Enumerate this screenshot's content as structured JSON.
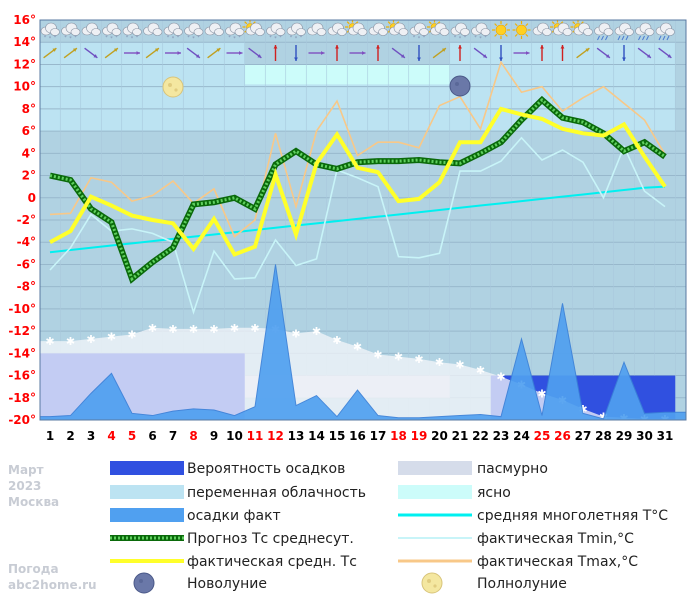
{
  "chart_data": {
    "type": "line",
    "title": "",
    "xlabel": "",
    "ylabel": "",
    "x": [
      1,
      2,
      3,
      4,
      5,
      6,
      7,
      8,
      9,
      10,
      11,
      12,
      13,
      14,
      15,
      16,
      17,
      18,
      19,
      20,
      21,
      22,
      23,
      24,
      25,
      26,
      27,
      28,
      29,
      30,
      31
    ],
    "weekend_days": [
      4,
      5,
      8,
      11,
      12,
      18,
      19,
      25,
      26
    ],
    "ylim": [
      -20,
      16
    ],
    "yticks": [
      "16°",
      "14°",
      "12°",
      "10°",
      "8°",
      "6°",
      "4°",
      "2°",
      "0",
      "-2°",
      "-4°",
      "-6°",
      "-8°",
      "-10°",
      "-12°",
      "-14°",
      "-16°",
      "-18°",
      "-20°"
    ],
    "series": [
      {
        "name": "средняя многолетняя T°C",
        "color": "#00f0f0",
        "values": [
          -4.9,
          -4.7,
          -4.5,
          -4.3,
          -4.1,
          -3.9,
          -3.7,
          -3.5,
          -3.3,
          -3.1,
          -2.9,
          -2.7,
          -2.5,
          -2.3,
          -2.1,
          -1.9,
          -1.7,
          -1.5,
          -1.3,
          -1.1,
          -0.9,
          -0.7,
          -0.5,
          -0.3,
          -0.1,
          0.1,
          0.3,
          0.5,
          0.7,
          0.9,
          1.0
        ]
      },
      {
        "name": "фактическая Tmin,°C",
        "color": "#c8f4f8",
        "values": [
          -6.5,
          -4.5,
          -1.5,
          -3.0,
          -2.8,
          -3.2,
          -4.0,
          -10.3,
          -4.8,
          -7.3,
          -7.2,
          -3.8,
          -6.1,
          -5.5,
          2.5,
          1.8,
          1.0,
          -5.3,
          -5.4,
          -5.0,
          2.4,
          2.4,
          3.3,
          5.4,
          3.4,
          4.3,
          3.2,
          0.0,
          4.6,
          0.6,
          -0.8
        ]
      },
      {
        "name": "фактическая Tmax,°C",
        "color": "#f8c888",
        "values": [
          -1.5,
          -1.4,
          1.8,
          1.4,
          -0.3,
          0.2,
          1.5,
          -0.5,
          0.8,
          -3.5,
          -2.0,
          5.8,
          -0.8,
          6.0,
          8.7,
          3.8,
          5.0,
          5.0,
          4.5,
          8.3,
          9.1,
          6.2,
          12.2,
          9.5,
          10.0,
          7.8,
          9.0,
          10.0,
          8.5,
          7.0,
          3.9
        ]
      },
      {
        "name": "Прогноз Тс среднесут.",
        "color": "#108810",
        "values": [
          2.0,
          1.6,
          -1.0,
          -2.2,
          -7.3,
          -5.8,
          -4.5,
          -0.6,
          -0.4,
          0.0,
          -1.0,
          3.0,
          4.2,
          3.0,
          2.6,
          3.2,
          3.3,
          3.3,
          3.4,
          3.2,
          3.1,
          4.0,
          5.0,
          7.0,
          8.8,
          7.2,
          6.8,
          5.8,
          4.2,
          5.0,
          3.7
        ]
      },
      {
        "name": "фактическая средн. Тс",
        "color": "#ffff2a",
        "values": [
          -4.0,
          -3.0,
          0.1,
          -0.7,
          -1.6,
          -2.0,
          -2.3,
          -4.6,
          -1.9,
          -5.1,
          -4.4,
          2.1,
          -3.3,
          3.1,
          5.7,
          2.7,
          2.3,
          -0.3,
          -0.1,
          1.4,
          5.0,
          5.0,
          8.0,
          7.5,
          7.1,
          6.2,
          5.8,
          5.6,
          6.6,
          3.7,
          1.0
        ]
      }
    ],
    "precip_fact": [
      -19.7,
      -19.6,
      -17.6,
      -15.8,
      -19.4,
      -19.6,
      -19.2,
      -19.0,
      -19.1,
      -19.6,
      -18.8,
      -6.0,
      -18.7,
      -17.8,
      -19.7,
      -17.3,
      -19.6,
      -19.8,
      -19.8,
      -19.7,
      -19.6,
      -19.5,
      -19.7,
      -12.7,
      -19.6,
      -9.5,
      -19.4,
      -19.9,
      -14.8,
      -19.4,
      -19.3
    ],
    "snow_line": [
      -12.9,
      -12.9,
      -12.7,
      -12.5,
      -12.3,
      -11.7,
      -11.8,
      -11.8,
      -11.8,
      -11.7,
      -11.7,
      -11.8,
      -12.2,
      -12.0,
      -12.8,
      -13.4,
      -14.1,
      -14.3,
      -14.5,
      -14.8,
      -15.0,
      -15.5,
      -16.1,
      -16.8,
      -17.6,
      -18.2,
      -19.0,
      -19.7,
      -19.8,
      -19.9,
      -19.9
    ],
    "precip_prob_bands": [
      {
        "from": 0.5,
        "to": 10.5,
        "top": -14
      },
      {
        "from": 22.5,
        "to": 31.5,
        "top": -16
      }
    ],
    "overcast_bands": [
      {
        "from": 0.5,
        "to": 10.5,
        "top": -14,
        "bottom": -19
      },
      {
        "from": 10.5,
        "to": 20.5,
        "top": -16,
        "bottom": -18
      }
    ],
    "sky_bands": [
      {
        "kind": "partly",
        "from": 0.5,
        "to": 10.5,
        "top": 14,
        "bottom": 6
      },
      {
        "kind": "clear",
        "from": 10.5,
        "to": 20.5,
        "top": 12,
        "bottom": 10.2
      },
      {
        "kind": "partly",
        "from": 10.5,
        "to": 20.5,
        "top": 10.2,
        "bottom": 6
      },
      {
        "kind": "partly",
        "from": 20.5,
        "to": 31.5,
        "top": 14,
        "bottom": 6
      }
    ],
    "full_moon_day": 7,
    "new_moon_day": 21,
    "weather_icons": [
      "snow-cloud",
      "snow-cloud",
      "cloud",
      "snow-cloud",
      "snow-cloud",
      "cloud",
      "snow-cloud",
      "snow-cloud",
      "cloud",
      "snow-cloud",
      "sun-cloud",
      "snow-cloud",
      "snow-cloud",
      "cloud",
      "cloud",
      "sun-cloud",
      "cloud",
      "sun-cloud",
      "snow-cloud",
      "sun-cloud",
      "snow-cloud",
      "snow-cloud",
      "sun",
      "sun",
      "cloud",
      "sun-cloud",
      "sun-cloud",
      "rain-cloud",
      "rain-cloud",
      "rain-cloud",
      "rain-cloud"
    ],
    "wind_arrows": [
      "ne",
      "ne",
      "se",
      "ne",
      "e",
      "ne",
      "e",
      "se",
      "ne",
      "e",
      "se",
      "n",
      "s",
      "e",
      "n",
      "e",
      "n",
      "se",
      "s",
      "ne",
      "n",
      "se",
      "s",
      "e",
      "n",
      "n",
      "ne",
      "se",
      "s",
      "se",
      "se"
    ]
  },
  "legend": {
    "col1": [
      {
        "label": "Вероятность осадков",
        "swatch": "prob"
      },
      {
        "label": "переменная облачность",
        "swatch": "partly"
      },
      {
        "label": "осадки факт",
        "swatch": "precip"
      },
      {
        "label": "Прогноз Тс среднесут.",
        "swatch": "forecast"
      },
      {
        "label": "фактическая средн. Тс",
        "swatch": "actual"
      },
      {
        "label": "Новолуние",
        "swatch": "newmoon"
      }
    ],
    "col2": [
      {
        "label": "пасмурно",
        "swatch": "overcast"
      },
      {
        "label": "ясно",
        "swatch": "clear"
      },
      {
        "label": "средняя многолетняя T°C",
        "swatch": "norm"
      },
      {
        "label": "фактическая Tmin,°C",
        "swatch": "tmin"
      },
      {
        "label": "фактическая Tmax,°C",
        "swatch": "tmax"
      },
      {
        "label": "Полнолуние",
        "swatch": "fullmoon"
      }
    ]
  },
  "side_info": {
    "month": "Март",
    "year": "2023",
    "city": "Москва",
    "site_line1": "Погода",
    "site_line2": "abc2home.ru"
  },
  "colors": {
    "plot_bg": "#b0d2e2",
    "partly": "#bce3f2",
    "clear": "#ccfcfa",
    "overcast": "#d5dcea",
    "prob": "#3050e0",
    "precip": "#50a0f0",
    "forecast": "#108810",
    "actual": "#ffff2a",
    "norm": "#00f0f0",
    "tmin": "#c8f4f8",
    "tmax": "#f8c888",
    "weekend": "#ff0000"
  }
}
